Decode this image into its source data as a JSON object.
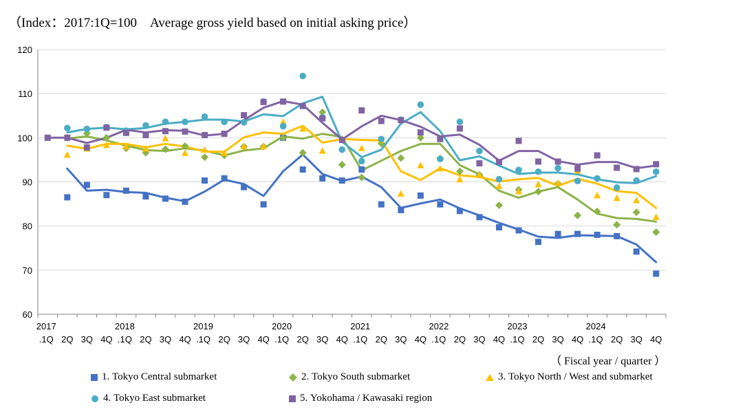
{
  "chart_data": {
    "type": "line",
    "title": "（Index：2017:1Q=100　Average gross yield based on initial asking price）",
    "x_axis_unit": "（ Fiscal year / quarter ）",
    "ylim": [
      60,
      120
    ],
    "y_ticks": [
      60,
      70,
      80,
      90,
      100,
      110,
      120
    ],
    "x_labels": [
      ".1Q",
      "2Q",
      "3Q",
      "4Q",
      ".1Q",
      "2Q",
      "3Q",
      "4Q",
      ".1Q",
      "2Q",
      "3Q",
      "4Q",
      ".1Q",
      "2Q",
      "3Q",
      "4Q",
      ".1Q",
      "2Q",
      "3Q",
      "4Q",
      ".1Q",
      "2Q",
      "3Q",
      "4Q",
      ".1Q",
      "2Q",
      "3Q",
      "4Q",
      ".1Q",
      "2Q",
      "3Q",
      "4Q"
    ],
    "year_labels": [
      "2017",
      "2018",
      "2019",
      "2020",
      "2021",
      "2022",
      "2023",
      "2024"
    ],
    "grid": "horizontal",
    "legend_position": "bottom",
    "series": [
      {
        "name": "1. Tokyo Central submarket",
        "legend_number": "1.",
        "legend_text": "Tokyo Central submarket",
        "color": "#4472C4",
        "marker": "square",
        "points": [
          null,
          86.5,
          89.3,
          87,
          88,
          86.7,
          86.2,
          85.5,
          90.3,
          90.8,
          88.8,
          84.9,
          100,
          92.8,
          90.8,
          90.3,
          92.8,
          84.9,
          83.6,
          86.9,
          84.9,
          83.4,
          82,
          79.7,
          79,
          76.4,
          78.2,
          78.2,
          78,
          77.7,
          74.2,
          69.2
        ],
        "trend": [
          null,
          93,
          88,
          88.2,
          87.7,
          87.5,
          86.4,
          85.6,
          87.8,
          90.5,
          89.5,
          86.8,
          92.4,
          96.2,
          91.8,
          90.2,
          91.2,
          88.8,
          84.1,
          85.1,
          86,
          84,
          82.4,
          80.7,
          79.2,
          77.6,
          77.3,
          77.9,
          77.8,
          77.7,
          75.8,
          71.8
        ]
      },
      {
        "name": "2. Tokyo South submarket",
        "legend_number": "2.",
        "legend_text": "Tokyo South submarket",
        "color": "#8DB34A",
        "marker": "diamond",
        "points": [
          null,
          100,
          101,
          100,
          97.6,
          96.6,
          97.4,
          98.1,
          95.6,
          96,
          98,
          98,
          100,
          96.6,
          105.8,
          93.9,
          91,
          98.7,
          95.4,
          100,
          95.3,
          92.4,
          91.6,
          84.7,
          88.2,
          87.8,
          89.6,
          82.4,
          83.3,
          80.3,
          83.1,
          78.6
        ],
        "trend": [
          null,
          99.8,
          100.3,
          99.4,
          98.2,
          97.2,
          97,
          97.6,
          97.1,
          96,
          97.1,
          97.6,
          100.3,
          99.8,
          100.9,
          100.2,
          92.6,
          94.8,
          97,
          98.6,
          98.6,
          93.8,
          91.7,
          88,
          86.4,
          87.8,
          88.8,
          86,
          82.8,
          81.8,
          81.6,
          81
        ]
      },
      {
        "name": "3. Tokyo North / West and submarket",
        "legend_number": "3.",
        "legend_text": "Tokyo North / West and  submarket",
        "color": "#FFC000",
        "marker": "triangle",
        "points": [
          null,
          96.1,
          97.5,
          98.3,
          98,
          97.5,
          99.8,
          96.5,
          97.2,
          96.5,
          98,
          98,
          103.5,
          102,
          97,
          99.5,
          97.6,
          99.5,
          87.3,
          93.7,
          93,
          90.5,
          91.5,
          89,
          87.8,
          89.4,
          89.7,
          92.5,
          86.9,
          86.3,
          85.8,
          82
        ],
        "trend": [
          null,
          98.2,
          97.5,
          98.6,
          98.6,
          97.8,
          98.6,
          98,
          96.9,
          96.8,
          100.1,
          101.2,
          100.9,
          102.7,
          98.9,
          99.7,
          99.5,
          99.4,
          92.4,
          90.4,
          93.1,
          91.5,
          91.1,
          90.1,
          90.6,
          90.9,
          89.1,
          90.7,
          89.6,
          87.9,
          87.5,
          84.1
        ]
      },
      {
        "name": "4. Tokyo East submarket",
        "legend_number": "4.",
        "legend_text": "Tokyo East submarket",
        "color": "#4BACC6",
        "marker": "circle",
        "points": [
          null,
          102.2,
          102,
          102.4,
          101.6,
          102.8,
          103.6,
          103.6,
          104.8,
          103.6,
          103.5,
          108.2,
          102.6,
          114,
          104.6,
          97.3,
          94.7,
          99.7,
          104.1,
          107.5,
          95.2,
          103.6,
          97,
          90.6,
          92.7,
          92.3,
          93.1,
          90.2,
          90.8,
          88.7,
          90.3,
          92.3
        ],
        "trend": [
          null,
          101.2,
          102,
          102.3,
          101.9,
          102.2,
          103.2,
          103.6,
          104.1,
          104.1,
          103.7,
          105.3,
          104.9,
          107.8,
          109.3,
          99.1,
          95.6,
          97.3,
          103.2,
          105.8,
          101.5,
          94.9,
          95.8,
          93.7,
          91.8,
          92.1,
          92.1,
          91.7,
          90.6,
          89.9,
          89.7,
          91.3
        ]
      },
      {
        "name": "5. Yokohama / Kawasaki region",
        "legend_number": "5.",
        "legend_text": "Yokohama / Kawasaki region",
        "color": "#8064A2",
        "marker": "square",
        "points": [
          100,
          100,
          97.8,
          102.3,
          101.1,
          100.6,
          101.5,
          101.4,
          100.6,
          100.9,
          105.1,
          108.1,
          108.2,
          107.2,
          104.4,
          99.5,
          106.2,
          103.8,
          104,
          101.2,
          99.7,
          102.1,
          94.2,
          94.5,
          99.3,
          94.6,
          94.6,
          93,
          96,
          93.2,
          92.9,
          94
        ],
        "trend": [
          100,
          100,
          98.8,
          100,
          101.8,
          101.2,
          101.7,
          101.6,
          100.5,
          100.9,
          104,
          106.8,
          108.3,
          107.5,
          103.4,
          99.6,
          102.6,
          105,
          104,
          102.5,
          100.3,
          100.7,
          98.4,
          94.8,
          97,
          97,
          94.7,
          93.9,
          94.5,
          94.5,
          93.1,
          93.7
        ]
      }
    ]
  }
}
